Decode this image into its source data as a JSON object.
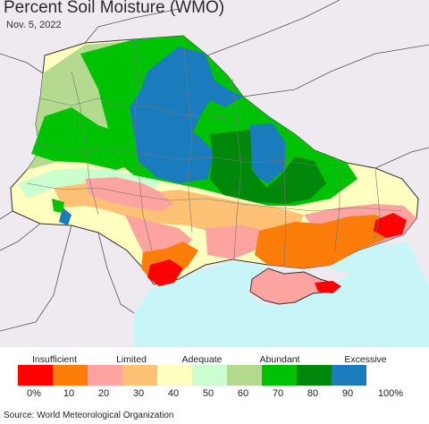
{
  "header": {
    "title": "Percent Soil Moisture (WMO)",
    "date": "Nov. 5, 2022"
  },
  "map": {
    "background_color": "#efeaf0",
    "water_color": "#c8f6f8",
    "border_color": "#4a4a4a"
  },
  "legend": {
    "categories": [
      "Insufficient",
      "Limited",
      "Adequate",
      "Abundant",
      "Excessive"
    ],
    "colors": [
      "#ff0000",
      "#fd7d0a",
      "#fda4a1",
      "#ffc274",
      "#ffffbf",
      "#cbffcf",
      "#b4da8f",
      "#00c205",
      "#00880a",
      "#1a7cbc"
    ],
    "ticks": [
      "0%",
      "10",
      "20",
      "30",
      "40",
      "50",
      "60",
      "70",
      "80",
      "90",
      "100%"
    ]
  },
  "footer": {
    "source": "Source: World Meteorological Organization"
  }
}
